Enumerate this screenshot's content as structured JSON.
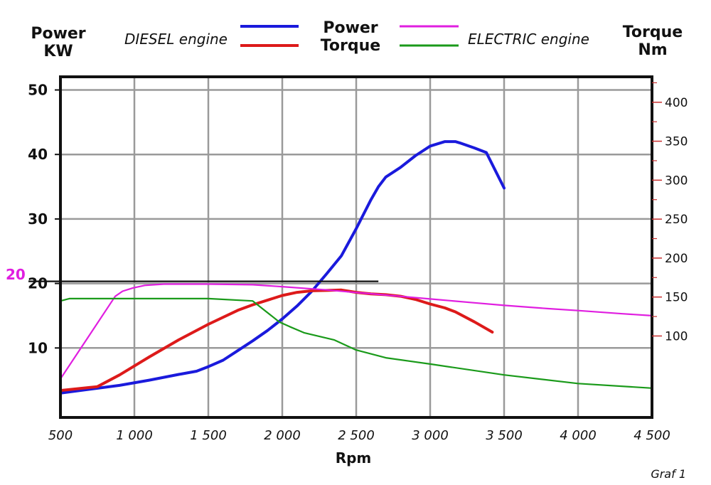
{
  "chart_data": {
    "type": "line",
    "left_axis_label": [
      "Power",
      "KW"
    ],
    "right_axis_label": [
      "Torque",
      "Nm"
    ],
    "xlabel": "Rpm",
    "xlim": [
      500,
      4500
    ],
    "ylim_left": [
      0,
      50
    ],
    "ylim_right": [
      0,
      440
    ],
    "x_ticks": [
      "500",
      "1 000",
      "1 500",
      "2 000",
      "2 500",
      "3 000",
      "3 500",
      "4 000",
      "4 500"
    ],
    "left_ticks": [
      "10",
      "20",
      "30",
      "40",
      "50"
    ],
    "right_ticks": [
      "100",
      "150",
      "200",
      "250",
      "300",
      "350",
      "400"
    ],
    "legend": {
      "group_diesel": "DIESEL engine",
      "group_electric": "ELECTRIC engine",
      "power_label": "Power",
      "torque_label": "Torque"
    },
    "annotation": {
      "label": "20",
      "value": 20,
      "x_end": 2650
    },
    "footer": "Graf 1",
    "grid": true,
    "series": [
      {
        "name": "DIESEL engine Power",
        "axis": "left",
        "color": "#1a1adc",
        "width": 4,
        "x": [
          500,
          700,
          900,
          1100,
          1300,
          1420,
          1500,
          1600,
          1700,
          1800,
          1900,
          2000,
          2100,
          2200,
          2300,
          2400,
          2500,
          2600,
          2650,
          2700,
          2800,
          2900,
          3000,
          3100,
          3170,
          3200,
          3300,
          3380,
          3500
        ],
        "y": [
          3,
          3.6,
          4.2,
          5,
          5.9,
          6.4,
          7.1,
          8.1,
          9.6,
          11.1,
          12.7,
          14.5,
          16.5,
          18.8,
          21.5,
          24.3,
          28.5,
          33,
          35,
          36.5,
          38,
          39.8,
          41.3,
          42,
          42,
          41.8,
          41,
          40.3,
          34.8
        ]
      },
      {
        "name": "DIESEL engine Torque",
        "axis": "right",
        "color": "#dd1a1a",
        "width": 4,
        "x": [
          500,
          750,
          900,
          1100,
          1300,
          1500,
          1700,
          1800,
          2000,
          2100,
          2200,
          2300,
          2400,
          2500,
          2600,
          2700,
          2800,
          2900,
          3000,
          3100,
          3170,
          3300,
          3420
        ],
        "y": [
          30,
          35,
          50,
          73,
          95,
          115,
          133,
          140,
          152,
          156,
          158,
          158.5,
          159,
          156,
          154,
          153,
          151,
          147,
          141,
          136,
          131,
          118,
          105
        ]
      },
      {
        "name": "ELECTRIC engine Power",
        "axis": "left",
        "color": "#e01ee0",
        "width": 2.2,
        "x": [
          500,
          870,
          920,
          990,
          1070,
          1200,
          1500,
          1800,
          2000,
          2300,
          2500,
          2800,
          3000,
          3300,
          3500,
          3800,
          4000,
          4300,
          4500
        ],
        "y": [
          5.2,
          18,
          18.8,
          19.3,
          19.7,
          19.9,
          19.9,
          19.8,
          19.5,
          19,
          18.6,
          18,
          17.6,
          17,
          16.6,
          16.1,
          15.8,
          15.3,
          15
        ]
      },
      {
        "name": "ELECTRIC engine Torque",
        "axis": "right",
        "color": "#1a9a1a",
        "width": 2.2,
        "x": [
          500,
          560,
          1000,
          1500,
          1800,
          1980,
          2050,
          2150,
          2350,
          2500,
          2700,
          3000,
          3500,
          4000,
          4500
        ],
        "y": [
          145,
          148,
          148,
          148,
          145,
          118,
          112,
          104,
          95,
          82,
          72,
          64,
          50,
          39,
          33
        ]
      }
    ]
  }
}
